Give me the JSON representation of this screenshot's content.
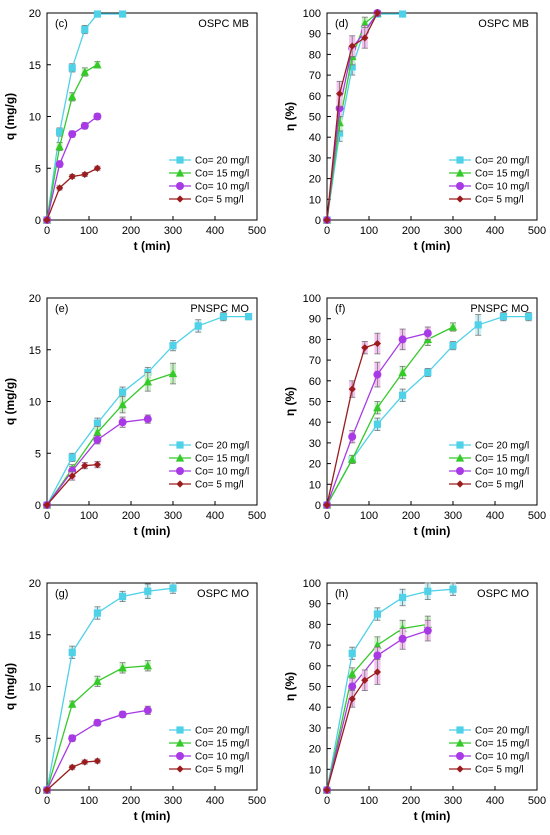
{
  "colors": {
    "s20": "#4fd1e8",
    "s15": "#35c92a",
    "s10": "#a83ae6",
    "s5": "#9b1c1c",
    "err20": "#c9f0f7",
    "err15": "#c9f0c4",
    "err10": "#f2c2ef",
    "err5": "#f2c2ef"
  },
  "chart_data": [
    {
      "id": "c",
      "letter": "(c)",
      "title": "OSPC MB",
      "type": "line",
      "xlabel": "t (min)",
      "ylabel": "q (mg/g)",
      "xlim": [
        0,
        500
      ],
      "ylim": [
        0,
        20
      ],
      "xticks": [
        0,
        100,
        200,
        300,
        400,
        500
      ],
      "yticks": [
        0,
        5,
        10,
        15,
        20
      ],
      "grid": false,
      "legend_position": "bottom-right",
      "series": [
        {
          "name": "Co= 20 mg/l",
          "marker": "square",
          "color_key": "s20",
          "x": [
            0,
            30,
            60,
            90,
            120,
            180
          ],
          "y": [
            0,
            8.5,
            14.7,
            18.4,
            19.9,
            19.9
          ],
          "err": [
            0,
            0.4,
            0.4,
            0.4,
            0.3,
            0.3
          ]
        },
        {
          "name": "Co= 15 mg/l",
          "marker": "triangle",
          "color_key": "s15",
          "x": [
            0,
            30,
            60,
            90,
            120
          ],
          "y": [
            0,
            7.1,
            11.9,
            14.3,
            15.0
          ],
          "err": [
            0,
            0.4,
            0.4,
            0.4,
            0.3
          ]
        },
        {
          "name": "Co= 10 mg/l",
          "marker": "circle",
          "color_key": "s10",
          "x": [
            0,
            30,
            60,
            90,
            120
          ],
          "y": [
            0,
            5.4,
            8.3,
            9.1,
            10.0
          ],
          "err": [
            0,
            0.3,
            0.3,
            0.3,
            0.3
          ]
        },
        {
          "name": "Co= 5 mg/l",
          "marker": "diamond",
          "color_key": "s5",
          "x": [
            0,
            30,
            60,
            90,
            120
          ],
          "y": [
            0,
            3.1,
            4.2,
            4.4,
            5.0
          ],
          "err": [
            0,
            0.2,
            0.2,
            0.2,
            0.2
          ]
        }
      ]
    },
    {
      "id": "d",
      "letter": "(d)",
      "title": "OSPC MB",
      "type": "line",
      "xlabel": "t (min)",
      "ylabel": "η (%)",
      "xlim": [
        0,
        500
      ],
      "ylim": [
        0,
        100
      ],
      "xticks": [
        0,
        100,
        200,
        300,
        400,
        500
      ],
      "yticks": [
        0,
        10,
        20,
        30,
        40,
        50,
        60,
        70,
        80,
        90,
        100
      ],
      "grid": false,
      "legend_position": "bottom-right",
      "series": [
        {
          "name": "Co= 20 mg/l",
          "marker": "square",
          "color_key": "s20",
          "x": [
            0,
            30,
            60,
            90,
            120,
            180
          ],
          "y": [
            0,
            42,
            74,
            92,
            99.5,
            99.5
          ],
          "err": [
            0,
            4,
            4,
            3,
            1,
            1
          ]
        },
        {
          "name": "Co= 15 mg/l",
          "marker": "triangle",
          "color_key": "s15",
          "x": [
            0,
            30,
            60,
            90,
            120
          ],
          "y": [
            0,
            47,
            79,
            95,
            100
          ],
          "err": [
            0,
            4,
            4,
            3,
            1
          ]
        },
        {
          "name": "Co= 10 mg/l",
          "marker": "circle",
          "color_key": "s10",
          "x": [
            0,
            30,
            60,
            90,
            120
          ],
          "y": [
            0,
            54,
            83,
            91,
            100
          ],
          "err": [
            0,
            4,
            4,
            3,
            1
          ]
        },
        {
          "name": "Co= 5 mg/l",
          "marker": "diamond",
          "color_key": "s5",
          "x": [
            0,
            30,
            60,
            90,
            120
          ],
          "y": [
            0,
            61,
            84,
            88,
            100
          ],
          "err": [
            0,
            6,
            5,
            5,
            1
          ]
        }
      ]
    },
    {
      "id": "e",
      "letter": "(e)",
      "title": "PNSPC MO",
      "type": "line",
      "xlabel": "t (min)",
      "ylabel": "q (mg/g)",
      "xlim": [
        0,
        500
      ],
      "ylim": [
        0,
        20
      ],
      "xticks": [
        0,
        100,
        200,
        300,
        400,
        500
      ],
      "yticks": [
        0,
        5,
        10,
        15,
        20
      ],
      "grid": false,
      "legend_position": "bottom-right",
      "series": [
        {
          "name": "Co= 20 mg/l",
          "marker": "square",
          "color_key": "s20",
          "x": [
            0,
            60,
            120,
            180,
            240,
            300,
            360,
            420,
            480
          ],
          "y": [
            0,
            4.6,
            7.9,
            10.9,
            12.8,
            15.4,
            17.3,
            18.2,
            18.2
          ],
          "err": [
            0,
            0.4,
            0.5,
            0.5,
            0.5,
            0.5,
            0.6,
            0.4,
            0.3
          ]
        },
        {
          "name": "Co= 15 mg/l",
          "marker": "triangle",
          "color_key": "s15",
          "x": [
            0,
            60,
            120,
            180,
            240,
            300
          ],
          "y": [
            0,
            3.5,
            7.0,
            9.7,
            11.9,
            12.7
          ],
          "err": [
            0,
            0.4,
            0.6,
            0.8,
            0.9,
            1.0
          ]
        },
        {
          "name": "Co= 10 mg/l",
          "marker": "circle",
          "color_key": "s10",
          "x": [
            0,
            60,
            120,
            180,
            240
          ],
          "y": [
            0,
            3.3,
            6.3,
            8.0,
            8.3
          ],
          "err": [
            0,
            0.4,
            0.4,
            0.5,
            0.4
          ]
        },
        {
          "name": "Co= 5 mg/l",
          "marker": "diamond",
          "color_key": "s5",
          "x": [
            0,
            60,
            90,
            120
          ],
          "y": [
            0,
            2.8,
            3.8,
            3.9
          ],
          "err": [
            0,
            0.4,
            0.3,
            0.3
          ]
        }
      ]
    },
    {
      "id": "f",
      "letter": "(f)",
      "title": "PNSPC MO",
      "type": "line",
      "xlabel": "t (min)",
      "ylabel": "η (%)",
      "xlim": [
        0,
        500
      ],
      "ylim": [
        0,
        100
      ],
      "xticks": [
        0,
        100,
        200,
        300,
        400,
        500
      ],
      "yticks": [
        0,
        10,
        20,
        30,
        40,
        50,
        60,
        70,
        80,
        90,
        100
      ],
      "grid": false,
      "legend_position": "bottom-right",
      "series": [
        {
          "name": "Co= 20 mg/l",
          "marker": "square",
          "color_key": "s20",
          "x": [
            0,
            60,
            120,
            180,
            240,
            300,
            360,
            420,
            480
          ],
          "y": [
            0,
            22,
            39,
            53,
            64,
            77,
            87,
            91,
            91
          ],
          "err": [
            0,
            2,
            3,
            3,
            2,
            2,
            5,
            2,
            2
          ]
        },
        {
          "name": "Co= 15 mg/l",
          "marker": "triangle",
          "color_key": "s15",
          "x": [
            0,
            60,
            120,
            180,
            240,
            300
          ],
          "y": [
            0,
            22,
            47,
            64,
            80,
            86
          ],
          "err": [
            0,
            2,
            3,
            3,
            3,
            2
          ]
        },
        {
          "name": "Co= 10 mg/l",
          "marker": "circle",
          "color_key": "s10",
          "x": [
            0,
            60,
            120,
            180,
            240
          ],
          "y": [
            0,
            33,
            63,
            80,
            83
          ],
          "err": [
            0,
            3,
            6,
            5,
            3
          ]
        },
        {
          "name": "Co= 5 mg/l",
          "marker": "diamond",
          "color_key": "s5",
          "x": [
            0,
            60,
            90,
            120
          ],
          "y": [
            0,
            56,
            76,
            78
          ],
          "err": [
            0,
            4,
            3,
            5
          ]
        }
      ]
    },
    {
      "id": "g",
      "letter": "(g)",
      "title": "OSPC MO",
      "type": "line",
      "xlabel": "t (min)",
      "ylabel": "q (mg/g)",
      "xlim": [
        0,
        500
      ],
      "ylim": [
        0,
        20
      ],
      "xticks": [
        0,
        100,
        200,
        300,
        400,
        500
      ],
      "yticks": [
        0,
        5,
        10,
        15,
        20
      ],
      "grid": false,
      "legend_position": "bottom-right",
      "series": [
        {
          "name": "Co= 20 mg/l",
          "marker": "square",
          "color_key": "s20",
          "x": [
            0,
            60,
            120,
            180,
            240,
            300
          ],
          "y": [
            0,
            13.3,
            17.1,
            18.7,
            19.2,
            19.5
          ],
          "err": [
            0,
            0.6,
            0.6,
            0.5,
            0.7,
            0.5
          ]
        },
        {
          "name": "Co= 15 mg/l",
          "marker": "triangle",
          "color_key": "s15",
          "x": [
            0,
            60,
            120,
            180,
            240
          ],
          "y": [
            0,
            8.3,
            10.5,
            11.8,
            12.0
          ],
          "err": [
            0,
            0.3,
            0.5,
            0.5,
            0.5
          ]
        },
        {
          "name": "Co= 10 mg/l",
          "marker": "circle",
          "color_key": "s10",
          "x": [
            0,
            60,
            120,
            180,
            240
          ],
          "y": [
            0,
            5.0,
            6.5,
            7.3,
            7.7
          ],
          "err": [
            0,
            0.3,
            0.3,
            0.3,
            0.4
          ]
        },
        {
          "name": "Co= 5 mg/l",
          "marker": "diamond",
          "color_key": "s5",
          "x": [
            0,
            60,
            90,
            120
          ],
          "y": [
            0,
            2.2,
            2.7,
            2.8
          ],
          "err": [
            0,
            0.2,
            0.2,
            0.2
          ]
        }
      ]
    },
    {
      "id": "h",
      "letter": "(h)",
      "title": "OSPC MO",
      "type": "line",
      "xlabel": "t (min)",
      "ylabel": "η (%)",
      "xlim": [
        0,
        500
      ],
      "ylim": [
        0,
        100
      ],
      "xticks": [
        0,
        100,
        200,
        300,
        400,
        500
      ],
      "yticks": [
        0,
        10,
        20,
        30,
        40,
        50,
        60,
        70,
        80,
        90,
        100
      ],
      "grid": false,
      "legend_position": "bottom-right",
      "series": [
        {
          "name": "Co= 20 mg/l",
          "marker": "square",
          "color_key": "s20",
          "x": [
            0,
            60,
            120,
            180,
            240,
            300
          ],
          "y": [
            0,
            66,
            85,
            93,
            96,
            97
          ],
          "err": [
            0,
            3,
            3,
            4,
            4,
            3
          ]
        },
        {
          "name": "Co= 15 mg/l",
          "marker": "triangle",
          "color_key": "s15",
          "x": [
            0,
            60,
            120,
            180,
            240
          ],
          "y": [
            0,
            56,
            70,
            78,
            80
          ],
          "err": [
            0,
            3,
            4,
            4,
            4
          ]
        },
        {
          "name": "Co= 10 mg/l",
          "marker": "circle",
          "color_key": "s10",
          "x": [
            0,
            60,
            120,
            180,
            240
          ],
          "y": [
            0,
            50,
            65,
            73,
            77
          ],
          "err": [
            0,
            4,
            4,
            5,
            5
          ]
        },
        {
          "name": "Co= 5 mg/l",
          "marker": "diamond",
          "color_key": "s5",
          "x": [
            0,
            60,
            90,
            120
          ],
          "y": [
            0,
            44,
            53,
            57
          ],
          "err": [
            0,
            4,
            5,
            6
          ]
        }
      ]
    }
  ]
}
